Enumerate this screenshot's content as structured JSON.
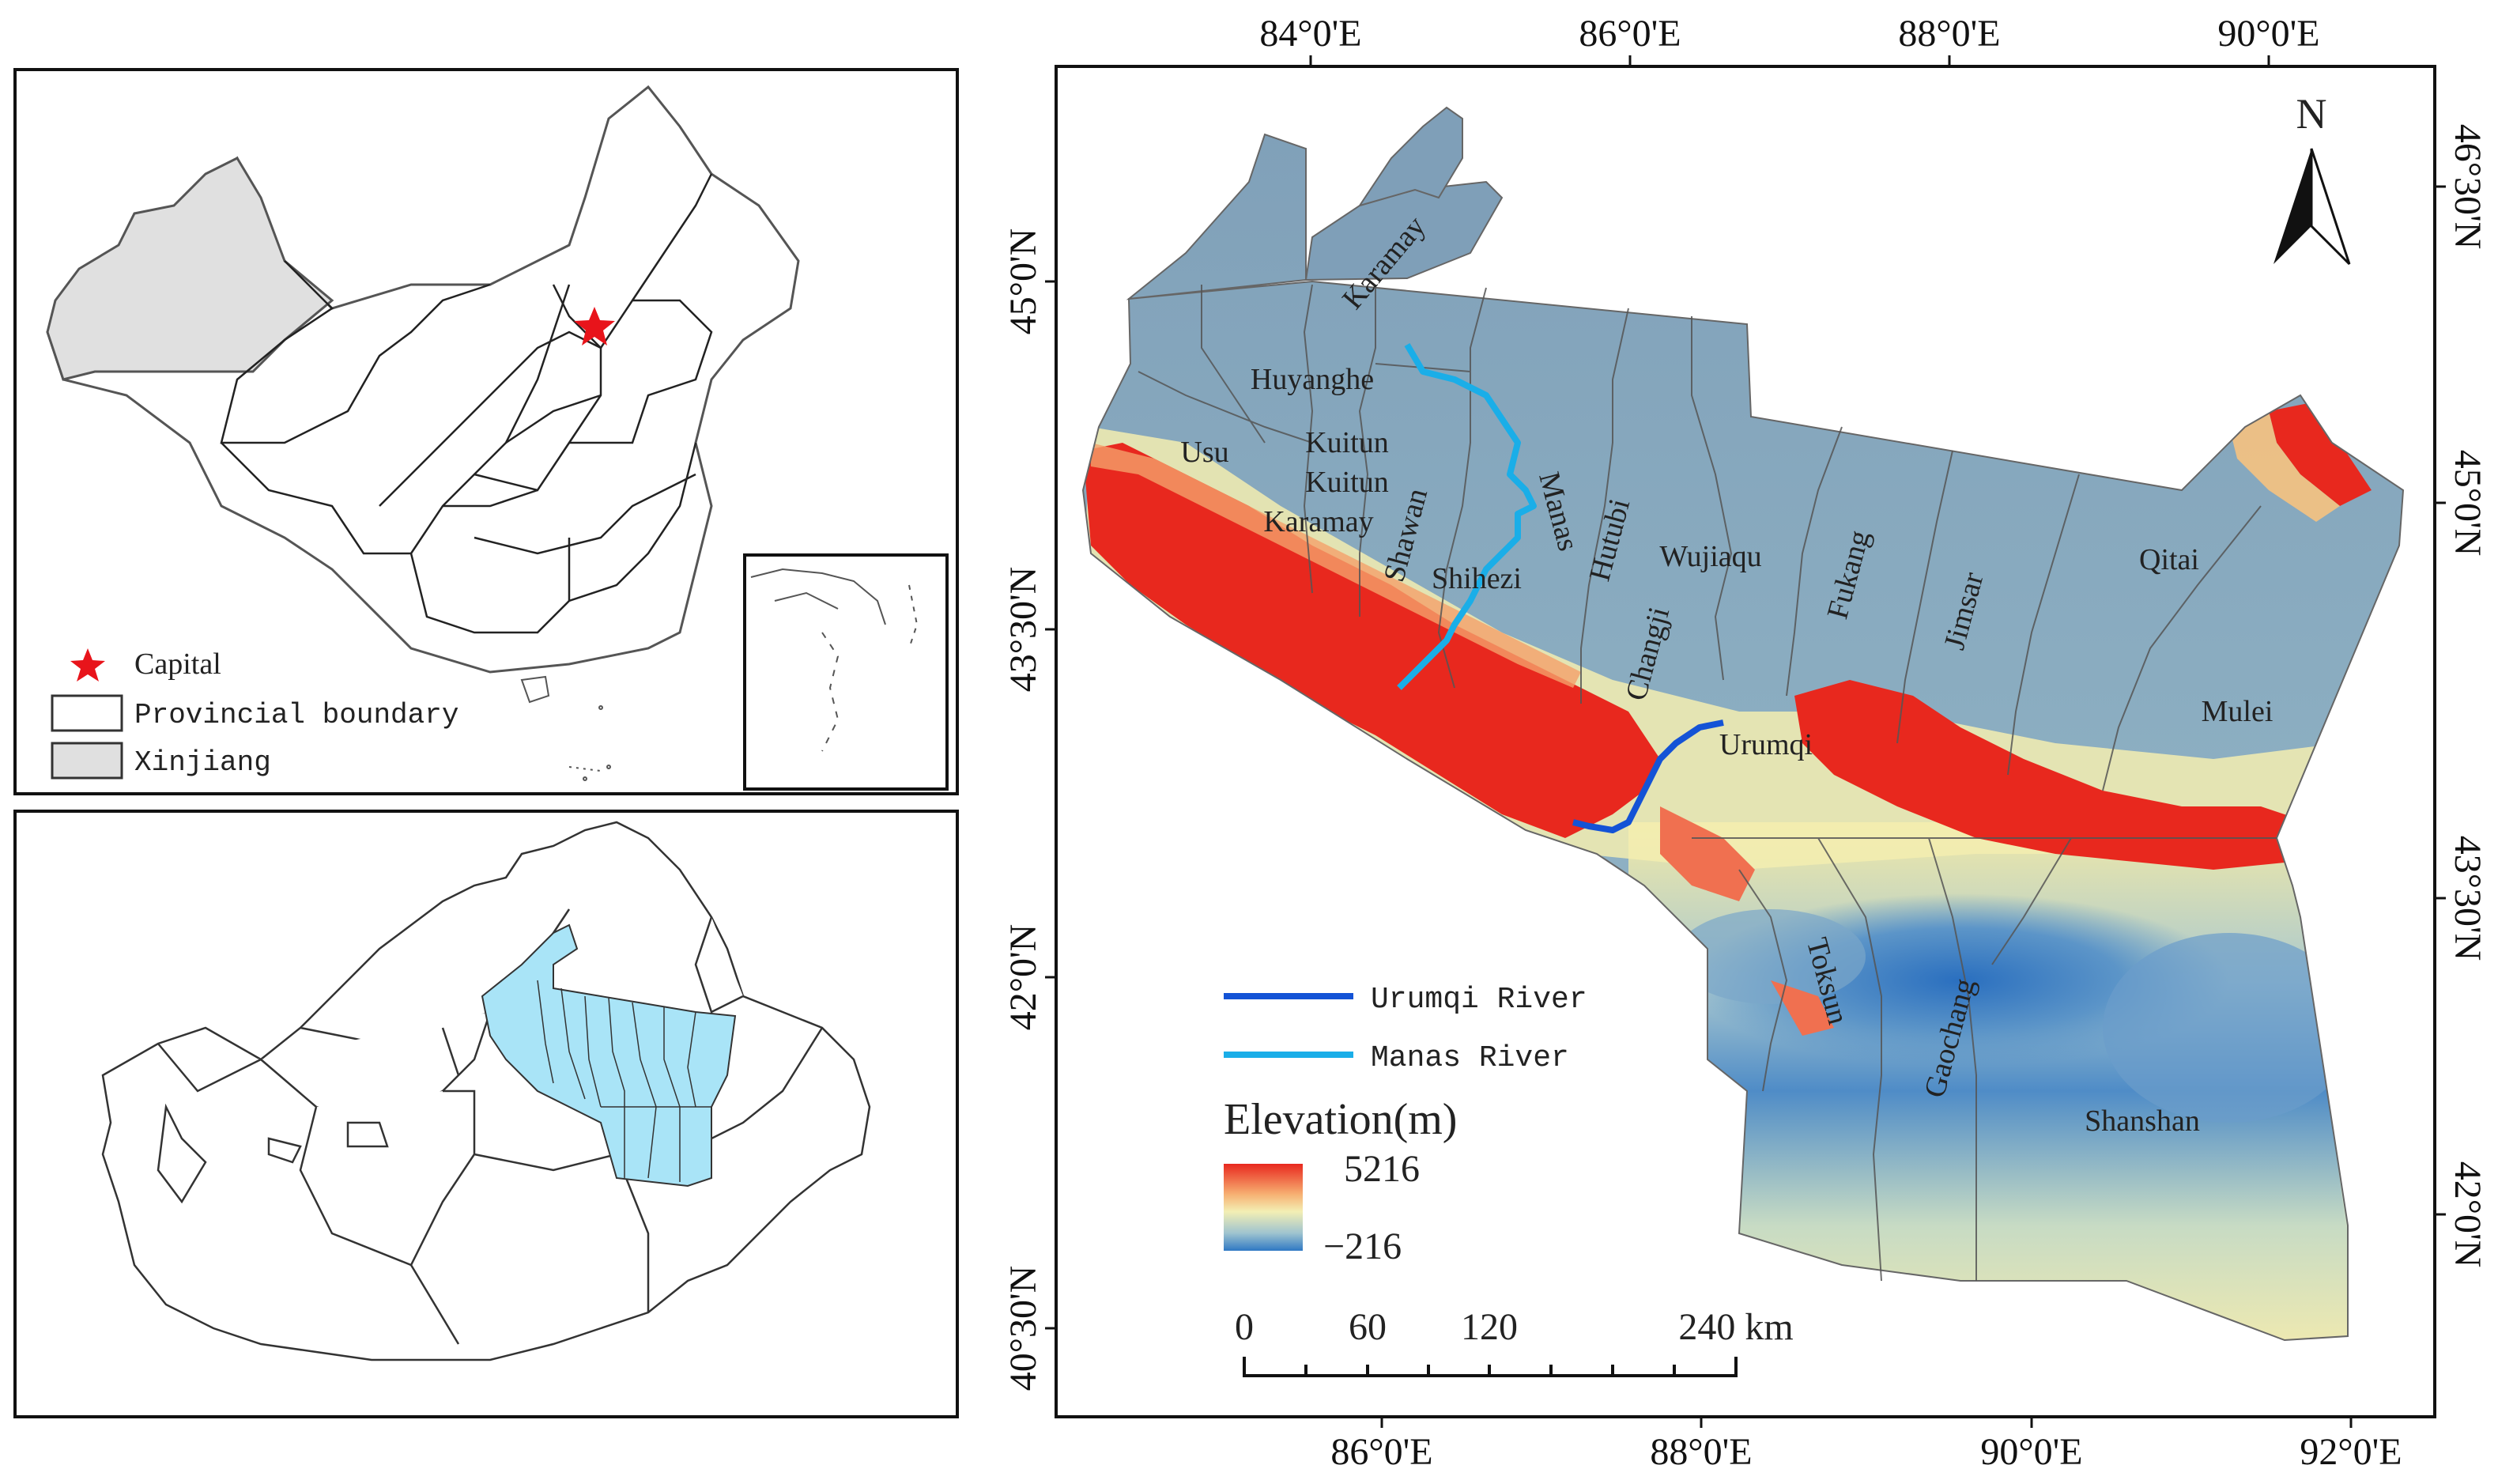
{
  "top_left_panel": {
    "legend": {
      "capital": "Capital",
      "provincial_boundary": "Provincial boundary",
      "xinjiang": "Xinjiang"
    },
    "colors": {
      "xinjiang_fill": "#e0e0e0",
      "capital_star": "#e8141b",
      "boundary": "#333333"
    }
  },
  "bottom_left_panel": {
    "colors": {
      "study_area_fill": "#a9e4f7",
      "boundary": "#333333"
    }
  },
  "main_map": {
    "top_axis_labels": [
      "84°0'E",
      "86°0'E",
      "88°0'E",
      "90°0'E"
    ],
    "bottom_axis_labels": [
      "86°0'E",
      "88°0'E",
      "90°0'E",
      "92°0'E"
    ],
    "left_axis_labels": [
      "45°0'N",
      "43°30'N",
      "42°0'N",
      "40°30'N"
    ],
    "right_axis_labels": [
      "46°30'N",
      "45°0'N",
      "43°30'N",
      "42°0'N"
    ],
    "north_arrow": "N",
    "place_names": [
      {
        "name": "Karamay",
        "rotation": -50
      },
      {
        "name": "Huyanghe",
        "rotation": 0
      },
      {
        "name": "Usu",
        "rotation": 0
      },
      {
        "name": "Kuitun",
        "rotation": 0
      },
      {
        "name": "Kuitun",
        "rotation": 0
      },
      {
        "name": "Karamay",
        "rotation": 0
      },
      {
        "name": "Shawan",
        "rotation": -75
      },
      {
        "name": "Manas",
        "rotation": 75
      },
      {
        "name": "Shihezi",
        "rotation": 0
      },
      {
        "name": "Hutubi",
        "rotation": -75
      },
      {
        "name": "Wujiaqu",
        "rotation": 0
      },
      {
        "name": "Changji",
        "rotation": -75
      },
      {
        "name": "Fukang",
        "rotation": -75
      },
      {
        "name": "Jimsar",
        "rotation": -75
      },
      {
        "name": "Qitai",
        "rotation": 0
      },
      {
        "name": "Mulei",
        "rotation": 0
      },
      {
        "name": "Urumqi",
        "rotation": 0
      },
      {
        "name": "Toksun",
        "rotation": 75
      },
      {
        "name": "Gaochang",
        "rotation": -75
      },
      {
        "name": "Shanshan",
        "rotation": 0
      }
    ],
    "legend": {
      "urumqi_river": "Urumqi River",
      "manas_river": "Manas River",
      "elevation_title": "Elevation(m)",
      "elevation_max": "5216",
      "elevation_min": "−216"
    },
    "scale_bar": {
      "labels": [
        "0",
        "60",
        "120",
        "240 km"
      ]
    },
    "colors": {
      "urumqi_river": "#1453d6",
      "manas_river": "#1aaee8",
      "elev_high": "#e8281e",
      "elev_mid": "#f3efb4",
      "elev_low": "#2f78c4",
      "lowland_blue": "#7f9fb8"
    }
  }
}
